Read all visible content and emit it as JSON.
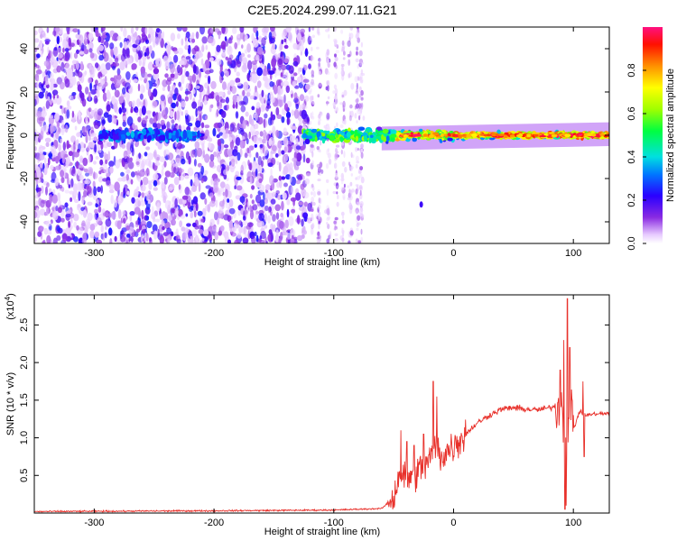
{
  "title": "C2E5.2024.299.07.11.G21",
  "chart_data": [
    {
      "type": "heatmap",
      "xlabel": "Height of straight line (km)",
      "ylabel": "Frequency (Hz)",
      "xlim": [
        -350,
        130
      ],
      "ylim": [
        -50,
        50
      ],
      "xticks": [
        -300,
        -200,
        -100,
        0,
        100
      ],
      "yticks": [
        -40,
        -20,
        0,
        20,
        40
      ],
      "colorbar": {
        "label": "Normalized spectral amplitude",
        "range": [
          0,
          1
        ],
        "ticks": [
          "0.0",
          "0.2",
          "0.4",
          "0.6",
          "0.8"
        ],
        "tick_values": [
          0.0,
          0.2,
          0.4,
          0.6,
          0.8
        ]
      },
      "features": {
        "noise_region_x": [
          -350,
          -120
        ],
        "sparse_noise_x": [
          -120,
          -75
        ],
        "signal_band_center_hz": 0,
        "signal_band_start_x": -60,
        "signal_band_end_x": 130,
        "weak_band_x": [
          -295,
          -210
        ],
        "isolated_spot": {
          "x": -27,
          "y": -32
        }
      }
    },
    {
      "type": "line",
      "xlabel": "Height of straight line (km)",
      "ylabel": "SNR (10 * v/v)",
      "y_multiplier_label": "(x10",
      "y_multiplier_exp": "4",
      "xlim": [
        -350,
        130
      ],
      "ylim": [
        0,
        2.9
      ],
      "xticks": [
        -300,
        -200,
        -100,
        0,
        100
      ],
      "yticks": [
        0.5,
        1.0,
        1.5,
        2.0,
        2.5
      ],
      "ytick_labels": [
        "0.5",
        "1.0",
        "1.5",
        "2.0",
        "2.5"
      ],
      "series": [
        {
          "color": "#e8302a",
          "envelope_x": [
            -350,
            -200,
            -100,
            -60,
            -50,
            -45,
            -40,
            -30,
            -20,
            -15,
            -10,
            0,
            10,
            20,
            30,
            40,
            50,
            60,
            70,
            80,
            85,
            90,
            92,
            95,
            97,
            100,
            105,
            110,
            120,
            130
          ],
          "envelope_y": [
            0.02,
            0.03,
            0.04,
            0.06,
            0.2,
            0.55,
            0.45,
            0.55,
            0.7,
            0.9,
            0.75,
            0.9,
            1.05,
            1.2,
            1.3,
            1.38,
            1.4,
            1.38,
            1.37,
            1.4,
            1.42,
            1.45,
            1.2,
            1.1,
            1.6,
            1.1,
            1.35,
            1.3,
            1.32,
            1.32
          ],
          "spikes": [
            {
              "x": -44,
              "y": 1.1
            },
            {
              "x": -39,
              "y": 0.95
            },
            {
              "x": -33,
              "y": 0.9
            },
            {
              "x": -25,
              "y": 1.05
            },
            {
              "x": -17,
              "y": 1.75
            },
            {
              "x": -14,
              "y": 1.55
            },
            {
              "x": 89,
              "y": 1.9
            },
            {
              "x": 92,
              "y": 2.3
            },
            {
              "x": 95,
              "y": 2.85
            },
            {
              "x": 97,
              "y": 2.2
            },
            {
              "x": 108,
              "y": 1.75
            }
          ],
          "dips": [
            {
              "x": 93,
              "y": 0.05
            },
            {
              "x": 94,
              "y": 0.1
            },
            {
              "x": 109,
              "y": 0.75
            }
          ]
        }
      ]
    }
  ]
}
